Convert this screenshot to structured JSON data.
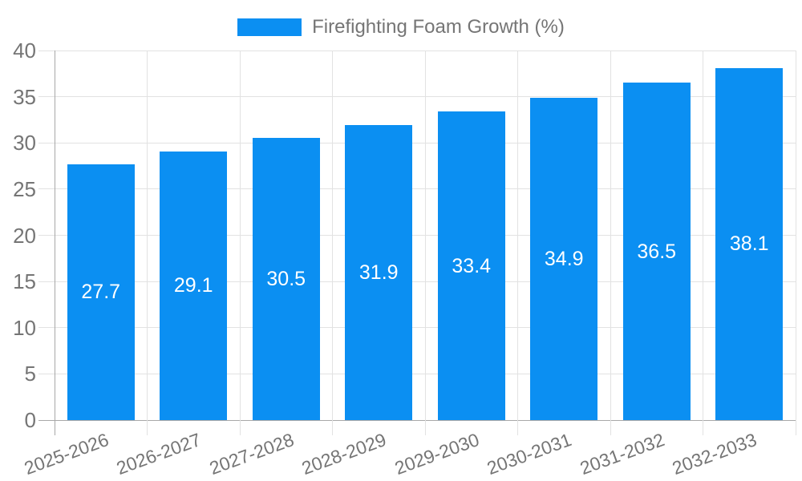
{
  "chart_data": {
    "type": "bar",
    "title": "Firefighting Foam Growth (%)",
    "categories": [
      "2025-2026",
      "2026-2027",
      "2027-2028",
      "2028-2029",
      "2029-2030",
      "2030-2031",
      "2031-2032",
      "2032-2033"
    ],
    "values": [
      27.7,
      29.1,
      30.5,
      31.9,
      33.4,
      34.9,
      36.5,
      38.1
    ],
    "value_labels": [
      "27.7",
      "29.1",
      "30.5",
      "31.9",
      "33.4",
      "34.9",
      "36.5",
      "38.1"
    ],
    "xlabel": "",
    "ylabel": "",
    "ylim": [
      0,
      40
    ],
    "ytick_step": 5,
    "ytick_labels": [
      "0",
      "5",
      "10",
      "15",
      "20",
      "25",
      "30",
      "35",
      "40"
    ],
    "grid": true,
    "legend_position": "top",
    "colors": {
      "bar": "#0b8ff2",
      "grid": "#e2e2e2",
      "axis_line": "#a8a8a8",
      "axis_text": "#757575",
      "value_text": "#ffffff"
    }
  }
}
